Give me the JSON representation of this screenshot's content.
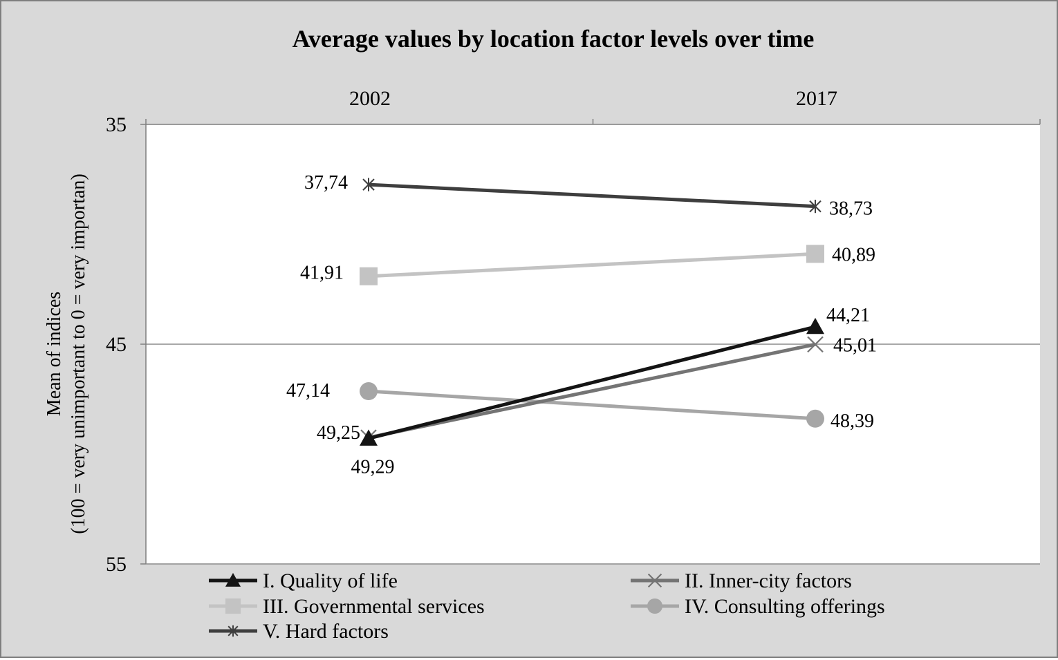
{
  "chart_data": {
    "type": "line",
    "title": "Average values by location factor levels over time",
    "xlabel": "",
    "ylabel_line1": "Mean of indices",
    "ylabel_line2": "(100 = very unimportant to 0 = very importan)",
    "categories": [
      "2002",
      "2017"
    ],
    "y_axis": {
      "min": 35,
      "max": 55,
      "reversed": true,
      "ticks": [
        "35",
        "45",
        "55"
      ],
      "gridlines": [
        45
      ]
    },
    "x_axis_position": "top",
    "legend_position": "bottom",
    "series": [
      {
        "name": "I. Quality of life",
        "values": [
          49.29,
          44.21
        ],
        "labels": [
          "49,29",
          "44,21"
        ],
        "color": "#141414",
        "marker": "triangle"
      },
      {
        "name": "II. Inner-city factors",
        "values": [
          49.25,
          45.01
        ],
        "labels": [
          "49,25",
          "45,01"
        ],
        "color": "#747474",
        "marker": "x"
      },
      {
        "name": "III. Governmental services",
        "values": [
          41.91,
          40.89
        ],
        "labels": [
          "41,91",
          "40,89"
        ],
        "color": "#c3c3c3",
        "marker": "square"
      },
      {
        "name": "IV. Consulting offerings",
        "values": [
          47.14,
          48.39
        ],
        "labels": [
          "47,14",
          "48,39"
        ],
        "color": "#a6a6a6",
        "marker": "circle"
      },
      {
        "name": "V. Hard factors",
        "values": [
          37.74,
          38.73
        ],
        "labels": [
          "37,74",
          "38,73"
        ],
        "color": "#3e3e3e",
        "marker": "star"
      }
    ]
  }
}
